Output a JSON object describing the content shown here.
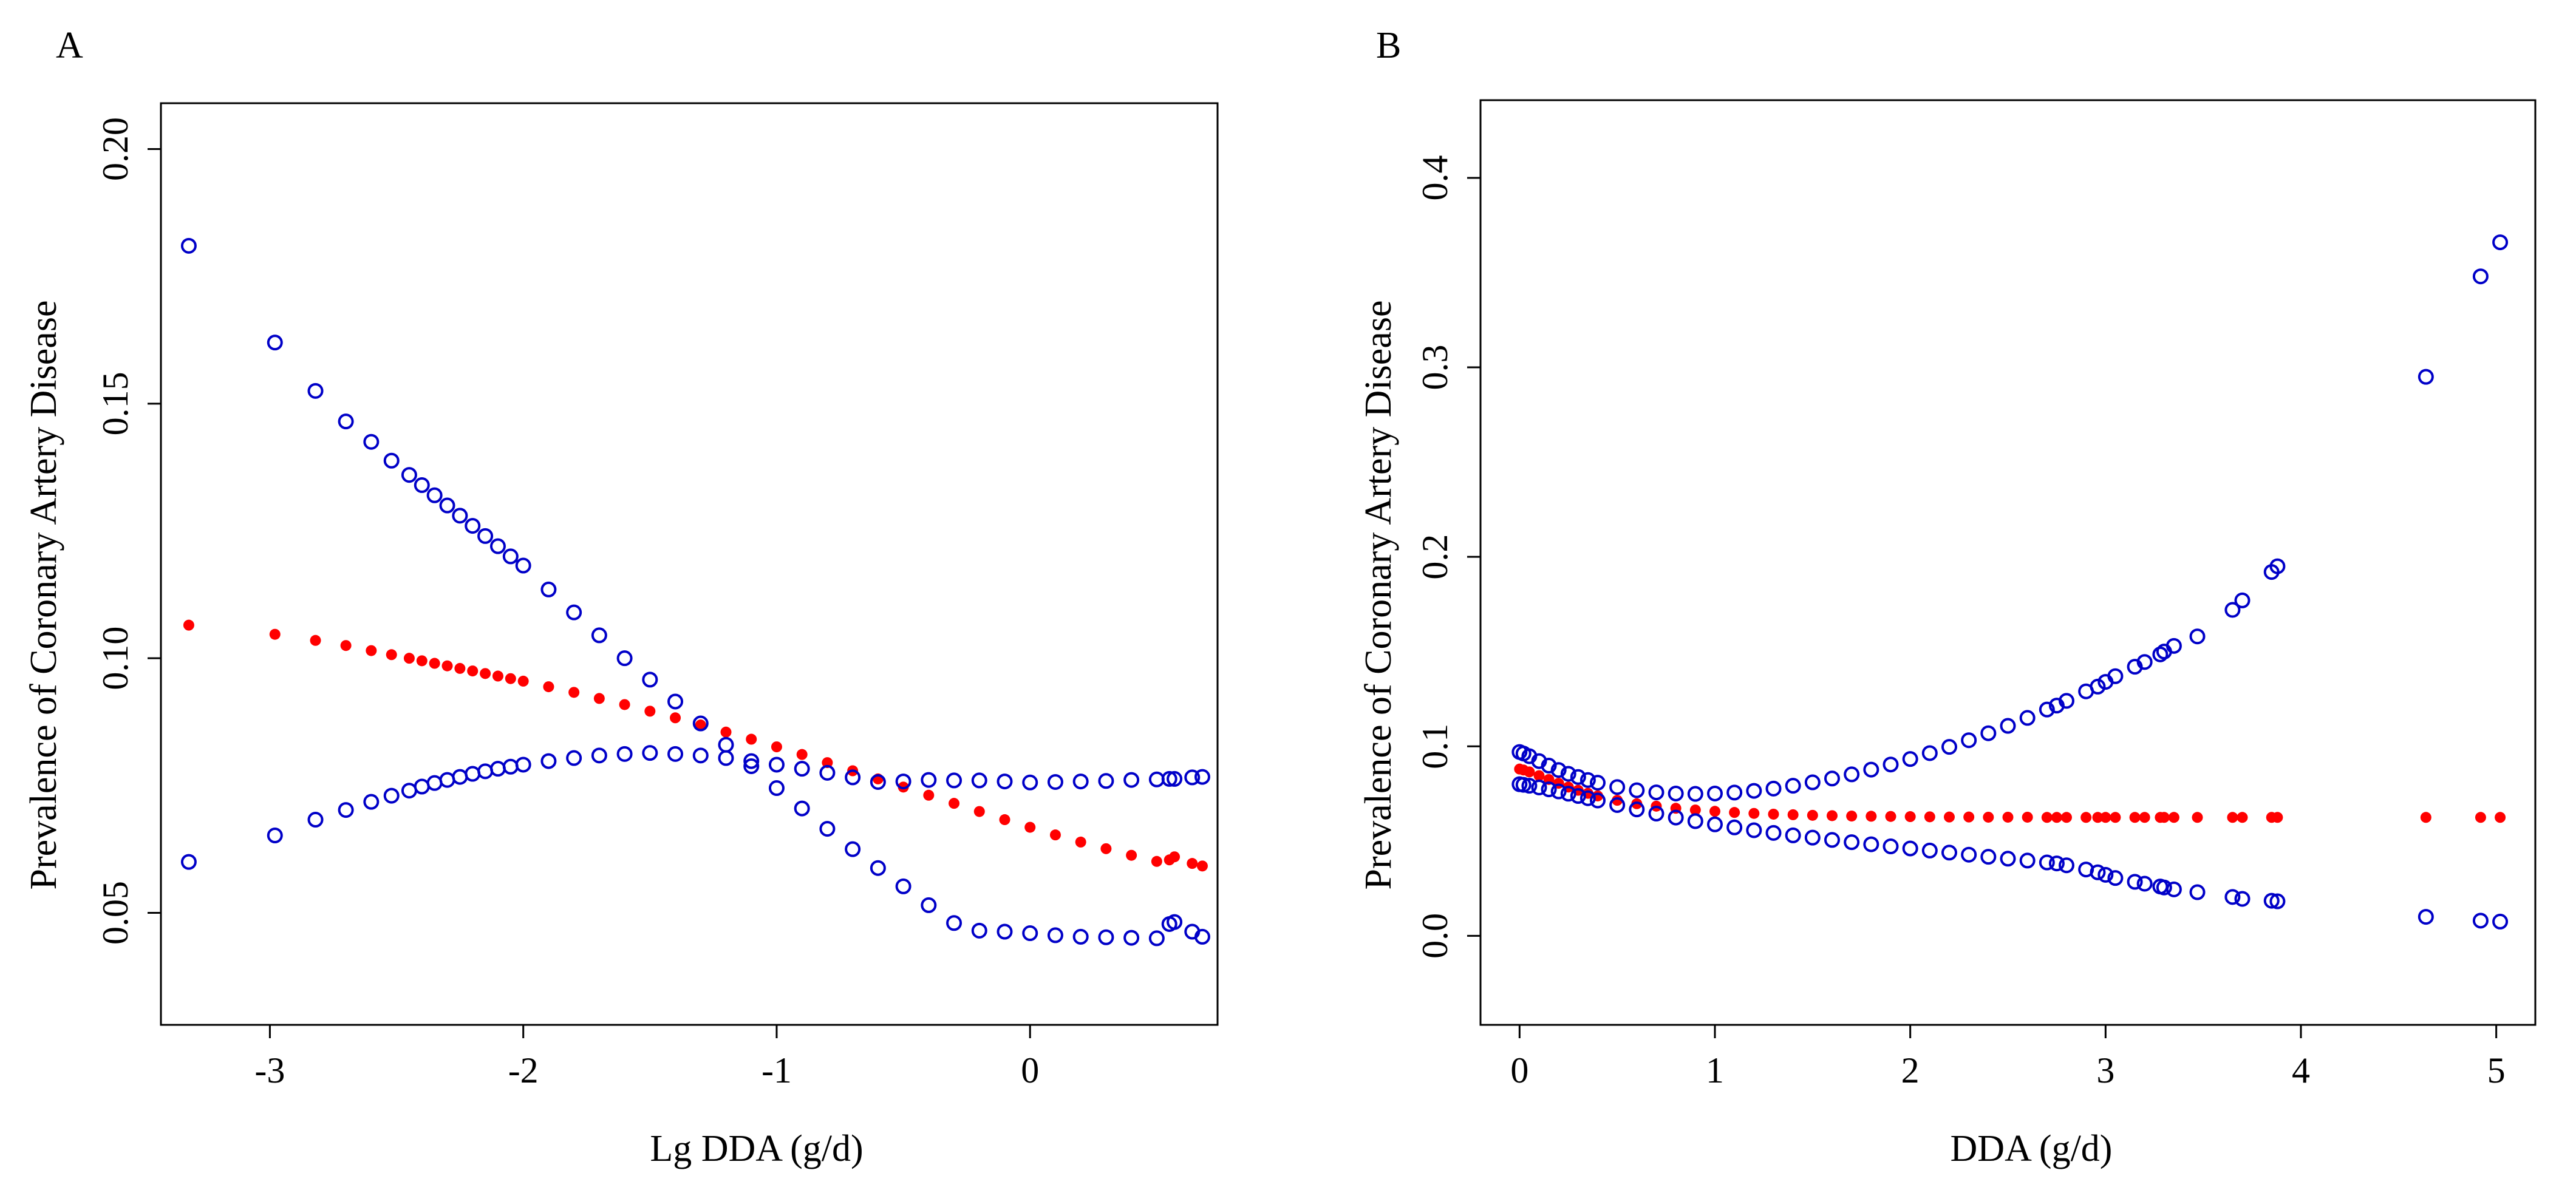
{
  "chart_data": [
    {
      "type": "scatter",
      "panel_label": "A",
      "title": "",
      "xlabel": "Lg DDA (g/d)",
      "ylabel": "Prevalence of Coronary Artery Disease",
      "xlim": [
        -3.43,
        0.74
      ],
      "ylim": [
        0.028,
        0.209
      ],
      "xticks": [
        -3,
        -2,
        -1,
        0
      ],
      "xtick_labels": [
        "-3",
        "-2",
        "-1",
        "0"
      ],
      "yticks": [
        0.05,
        0.1,
        0.15,
        0.2
      ],
      "ytick_labels": [
        "0.05",
        "0.10",
        "0.15",
        "0.20"
      ],
      "grid": false,
      "legend": "none",
      "x": [
        -3.32,
        -2.98,
        -2.82,
        -2.7,
        -2.6,
        -2.52,
        -2.45,
        -2.4,
        -2.35,
        -2.3,
        -2.25,
        -2.2,
        -2.15,
        -2.1,
        -2.05,
        -2.0,
        -1.9,
        -1.8,
        -1.7,
        -1.6,
        -1.5,
        -1.4,
        -1.3,
        -1.2,
        -1.1,
        -1.0,
        -0.9,
        -0.8,
        -0.7,
        -0.6,
        -0.5,
        -0.4,
        -0.3,
        -0.2,
        -0.1,
        0.0,
        0.1,
        0.2,
        0.3,
        0.4,
        0.5,
        0.55,
        0.57,
        0.64,
        0.68
      ],
      "series": [
        {
          "role": "estimate",
          "color": "#ff0000",
          "marker": "filled",
          "values": [
            0.1065,
            0.1047,
            0.1035,
            0.1025,
            0.1015,
            0.1007,
            0.1,
            0.0995,
            0.099,
            0.0985,
            0.098,
            0.0975,
            0.097,
            0.0965,
            0.096,
            0.0955,
            0.0944,
            0.0933,
            0.0921,
            0.0909,
            0.0896,
            0.0883,
            0.0869,
            0.0855,
            0.0841,
            0.0826,
            0.0811,
            0.0795,
            0.0779,
            0.0763,
            0.0747,
            0.0731,
            0.0715,
            0.0699,
            0.0683,
            0.0668,
            0.0653,
            0.0639,
            0.0626,
            0.0613,
            0.0601,
            0.0604,
            0.061,
            0.0597,
            0.0592
          ]
        },
        {
          "role": "upper",
          "color": "#0000c8",
          "marker": "open",
          "values": [
            0.181,
            0.162,
            0.1525,
            0.1465,
            0.1425,
            0.1388,
            0.136,
            0.134,
            0.132,
            0.13,
            0.128,
            0.126,
            0.124,
            0.122,
            0.12,
            0.1182,
            0.1135,
            0.109,
            0.1045,
            0.1,
            0.0958,
            0.0915,
            0.0872,
            0.083,
            0.0788,
            0.0745,
            0.0705,
            0.0665,
            0.0625,
            0.0588,
            0.0552,
            0.0515,
            0.048,
            0.0465,
            0.0463,
            0.046,
            0.0456,
            0.0453,
            0.0452,
            0.0451,
            0.045,
            0.0478,
            0.0482,
            0.0463,
            0.0453
          ]
        },
        {
          "role": "lower",
          "color": "#0000c8",
          "marker": "open",
          "values": [
            0.06,
            0.0652,
            0.0683,
            0.0702,
            0.0718,
            0.073,
            0.074,
            0.0748,
            0.0755,
            0.0761,
            0.0767,
            0.0773,
            0.0778,
            0.0783,
            0.0787,
            0.0791,
            0.0798,
            0.0804,
            0.0809,
            0.0812,
            0.0814,
            0.0812,
            0.0809,
            0.0804,
            0.0798,
            0.0791,
            0.0783,
            0.0775,
            0.0766,
            0.0757,
            0.0758,
            0.0761,
            0.076,
            0.076,
            0.0758,
            0.0756,
            0.0757,
            0.0758,
            0.0759,
            0.0761,
            0.0762,
            0.0763,
            0.0763,
            0.0766,
            0.0767
          ]
        }
      ]
    },
    {
      "type": "scatter",
      "panel_label": "B",
      "title": "",
      "xlabel": "DDA (g/d)",
      "ylabel": "Prevalence of Coronary Artery Disease",
      "xlim": [
        -0.2,
        5.2
      ],
      "ylim": [
        -0.047,
        0.441
      ],
      "xticks": [
        0,
        1,
        2,
        3,
        4,
        5
      ],
      "xtick_labels": [
        "0",
        "1",
        "2",
        "3",
        "4",
        "5"
      ],
      "yticks": [
        0.0,
        0.1,
        0.2,
        0.3,
        0.4
      ],
      "ytick_labels": [
        "0.0",
        "0.1",
        "0.2",
        "0.3",
        "0.4"
      ],
      "grid": false,
      "legend": "none",
      "x": [
        0.0,
        0.02,
        0.05,
        0.1,
        0.15,
        0.2,
        0.25,
        0.3,
        0.35,
        0.4,
        0.5,
        0.6,
        0.7,
        0.8,
        0.9,
        1.0,
        1.1,
        1.2,
        1.3,
        1.4,
        1.5,
        1.6,
        1.7,
        1.8,
        1.9,
        2.0,
        2.1,
        2.2,
        2.3,
        2.4,
        2.5,
        2.6,
        2.7,
        2.75,
        2.8,
        2.9,
        2.96,
        3.0,
        3.05,
        3.15,
        3.2,
        3.28,
        3.3,
        3.35,
        3.47,
        3.65,
        3.7,
        3.85,
        3.88,
        4.64,
        4.92,
        5.02
      ],
      "series": [
        {
          "role": "estimate",
          "color": "#ff0000",
          "marker": "filled",
          "values": [
            0.088,
            0.0875,
            0.0865,
            0.0845,
            0.0825,
            0.0805,
            0.0785,
            0.0768,
            0.0752,
            0.0738,
            0.0715,
            0.0697,
            0.0684,
            0.0673,
            0.0664,
            0.0657,
            0.0651,
            0.0646,
            0.0642,
            0.0639,
            0.0636,
            0.0634,
            0.0632,
            0.0631,
            0.063,
            0.0629,
            0.0628,
            0.0627,
            0.0627,
            0.0626,
            0.0626,
            0.0626,
            0.0625,
            0.0625,
            0.0625,
            0.0625,
            0.0625,
            0.0625,
            0.0625,
            0.0625,
            0.0625,
            0.0625,
            0.0625,
            0.0625,
            0.0625,
            0.0625,
            0.0625,
            0.0625,
            0.0625,
            0.0625,
            0.0625,
            0.0625
          ]
        },
        {
          "role": "upper",
          "color": "#0000c8",
          "marker": "open",
          "values": [
            0.097,
            0.0962,
            0.0948,
            0.0922,
            0.0898,
            0.0875,
            0.0855,
            0.0838,
            0.0822,
            0.0808,
            0.0785,
            0.0768,
            0.0757,
            0.0751,
            0.0749,
            0.0751,
            0.0756,
            0.0765,
            0.0777,
            0.0792,
            0.081,
            0.083,
            0.0852,
            0.0877,
            0.0904,
            0.0933,
            0.0964,
            0.0997,
            0.1032,
            0.1069,
            0.1108,
            0.115,
            0.1194,
            0.1215,
            0.124,
            0.129,
            0.1315,
            0.134,
            0.137,
            0.142,
            0.1445,
            0.1485,
            0.15,
            0.153,
            0.158,
            0.172,
            0.177,
            0.192,
            0.195,
            0.295,
            0.348,
            0.366
          ]
        },
        {
          "role": "lower",
          "color": "#0000c8",
          "marker": "open",
          "values": [
            0.08,
            0.0797,
            0.0792,
            0.0783,
            0.0773,
            0.0762,
            0.075,
            0.0738,
            0.0726,
            0.0714,
            0.069,
            0.0667,
            0.0645,
            0.0624,
            0.0605,
            0.0588,
            0.0572,
            0.0557,
            0.0543,
            0.053,
            0.0518,
            0.0506,
            0.0494,
            0.0483,
            0.0472,
            0.0461,
            0.045,
            0.0439,
            0.0428,
            0.0417,
            0.0407,
            0.0397,
            0.0387,
            0.0382,
            0.0372,
            0.035,
            0.0335,
            0.0322,
            0.0305,
            0.0285,
            0.0275,
            0.026,
            0.0255,
            0.0245,
            0.023,
            0.0205,
            0.0195,
            0.0185,
            0.0182,
            0.01,
            0.008,
            0.0075
          ]
        }
      ]
    }
  ]
}
